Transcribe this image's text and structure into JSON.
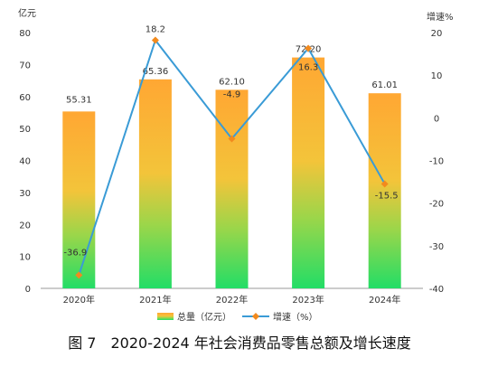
{
  "caption": "图 7　2020-2024 年社会消费品零售总额及增长速度",
  "chart_data": {
    "type": "bar",
    "categories": [
      "2020年",
      "2021年",
      "2022年",
      "2023年",
      "2024年"
    ],
    "series": [
      {
        "name": "总量（亿元）",
        "type": "bar",
        "axis": "left",
        "values": [
          55.31,
          65.36,
          62.1,
          72.2,
          61.01
        ],
        "labels": [
          "55.31",
          "65.36",
          "62.10",
          "72.20",
          "61.01"
        ]
      },
      {
        "name": "增速（%）",
        "type": "line",
        "axis": "right",
        "values": [
          -36.9,
          18.2,
          -4.9,
          16.3,
          -15.5
        ],
        "labels": [
          "-36.9",
          "18.2",
          "-4.9",
          "16.3",
          "-15.5"
        ]
      }
    ],
    "y_left": {
      "unit": "亿元",
      "min": 0,
      "max": 80,
      "ticks": [
        0,
        10,
        20,
        30,
        40,
        50,
        60,
        70,
        80
      ]
    },
    "y_right": {
      "unit": "增速%",
      "min": -40,
      "max": 20,
      "ticks": [
        -40,
        -30,
        -20,
        -10,
        0,
        10,
        20
      ]
    },
    "grid": false,
    "legend_position": "bottom",
    "colors": {
      "bar_top": "#ffa733",
      "bar_bottom": "#22dd66",
      "line": "#3a9bd6",
      "marker": "#f28a1e",
      "axis": "#999999"
    }
  }
}
